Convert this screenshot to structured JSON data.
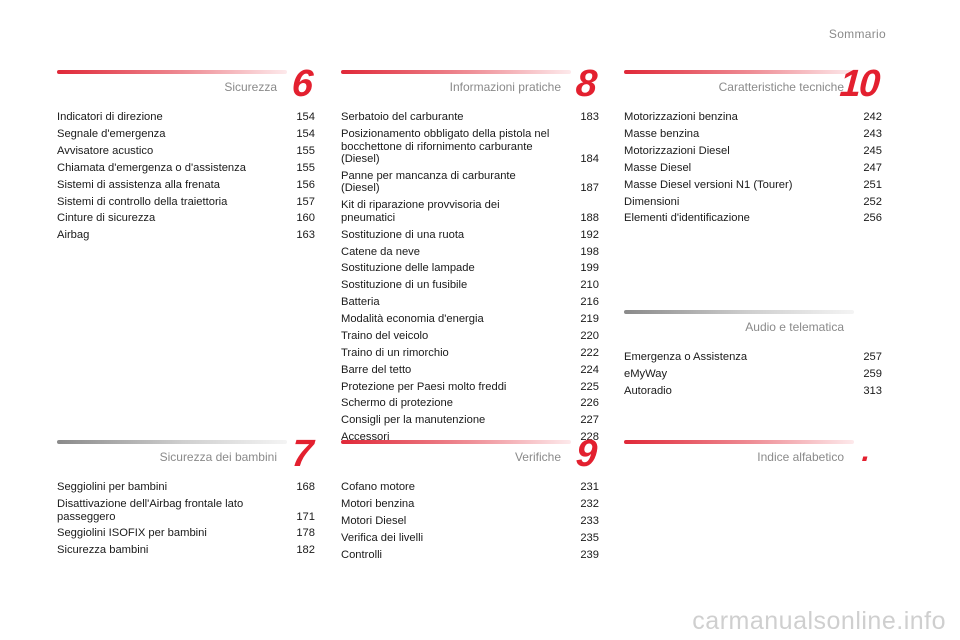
{
  "header": {
    "title": "Sommario"
  },
  "sections": [
    {
      "id": "sicurezza",
      "title": "Sicurezza",
      "number": "6",
      "bar": "red",
      "entries": [
        {
          "label": "Indicatori di direzione",
          "page": "154"
        },
        {
          "label": "Segnale d'emergenza",
          "page": "154"
        },
        {
          "label": "Avvisatore acustico",
          "page": "155"
        },
        {
          "label": "Chiamata d'emergenza o d'assistenza",
          "page": "155"
        },
        {
          "label": "Sistemi di assistenza alla frenata",
          "page": "156"
        },
        {
          "label": "Sistemi di controllo della traiettoria",
          "page": "157"
        },
        {
          "label": "Cinture di sicurezza",
          "page": "160"
        },
        {
          "label": "Airbag",
          "page": "163"
        }
      ]
    },
    {
      "id": "informazioni",
      "title": "Informazioni pratiche",
      "number": "8",
      "bar": "red",
      "entries": [
        {
          "label": "Serbatoio del carburante",
          "page": "183"
        },
        {
          "label": "Posizionamento obbligato della pistola nel bocchettone di rifornimento carburante (Diesel)",
          "page": "184"
        },
        {
          "label": "Panne per mancanza di carburante (Diesel)",
          "page": "187"
        },
        {
          "label": "Kit di riparazione provvisoria dei pneumatici",
          "page": "188"
        },
        {
          "label": "Sostituzione di una ruota",
          "page": "192"
        },
        {
          "label": "Catene da neve",
          "page": "198"
        },
        {
          "label": "Sostituzione delle lampade",
          "page": "199"
        },
        {
          "label": "Sostituzione di un fusibile",
          "page": "210"
        },
        {
          "label": "Batteria",
          "page": "216"
        },
        {
          "label": "Modalità economia d'energia",
          "page": "219"
        },
        {
          "label": "Traino del veicolo",
          "page": "220"
        },
        {
          "label": "Traino di un rimorchio",
          "page": "222"
        },
        {
          "label": "Barre del tetto",
          "page": "224"
        },
        {
          "label": "Protezione per Paesi molto freddi",
          "page": "225"
        },
        {
          "label": "Schermo di protezione",
          "page": "226"
        },
        {
          "label": "Consigli per la manutenzione",
          "page": "227"
        },
        {
          "label": "Accessori",
          "page": "228"
        }
      ]
    },
    {
      "id": "caratteristiche",
      "title": "Caratteristiche tecniche",
      "number": "10",
      "bar": "red",
      "entries": [
        {
          "label": "Motorizzazioni benzina",
          "page": "242"
        },
        {
          "label": "Masse benzina",
          "page": "243"
        },
        {
          "label": "Motorizzazioni Diesel",
          "page": "245"
        },
        {
          "label": "Masse Diesel",
          "page": "247"
        },
        {
          "label": "Masse Diesel versioni N1 (Tourer)",
          "page": "251"
        },
        {
          "label": "Dimensioni",
          "page": "252"
        },
        {
          "label": "Elementi d'identificazione",
          "page": "256"
        }
      ]
    },
    {
      "id": "audio",
      "title": "Audio e telematica",
      "number": "",
      "bar": "gray",
      "entries": [
        {
          "label": "Emergenza o Assistenza",
          "page": "257"
        },
        {
          "label": "eMyWay",
          "page": "259"
        },
        {
          "label": "Autoradio",
          "page": "313"
        }
      ]
    },
    {
      "id": "sicurezza-bambini",
      "title": "Sicurezza dei bambini",
      "number": "7",
      "bar": "gray",
      "entries": [
        {
          "label": "Seggiolini per bambini",
          "page": "168"
        },
        {
          "label": "Disattivazione dell'Airbag frontale lato passeggero",
          "page": "171"
        },
        {
          "label": "Seggiolini ISOFIX per bambini",
          "page": "178"
        },
        {
          "label": "Sicurezza bambini",
          "page": "182"
        }
      ]
    },
    {
      "id": "verifiche",
      "title": "Verifiche",
      "number": "9",
      "bar": "red",
      "entries": [
        {
          "label": "Cofano motore",
          "page": "231"
        },
        {
          "label": "Motori benzina",
          "page": "232"
        },
        {
          "label": "Motori Diesel",
          "page": "233"
        },
        {
          "label": "Verifica dei livelli",
          "page": "235"
        },
        {
          "label": "Controlli",
          "page": "239"
        }
      ]
    },
    {
      "id": "indice",
      "title": "Indice alfabetico",
      "number": ".",
      "bar": "red",
      "entries": []
    }
  ],
  "watermark": "carmanualsonline.info",
  "colors": {
    "accent": "#e3202f",
    "muted": "#8a8a8a"
  }
}
